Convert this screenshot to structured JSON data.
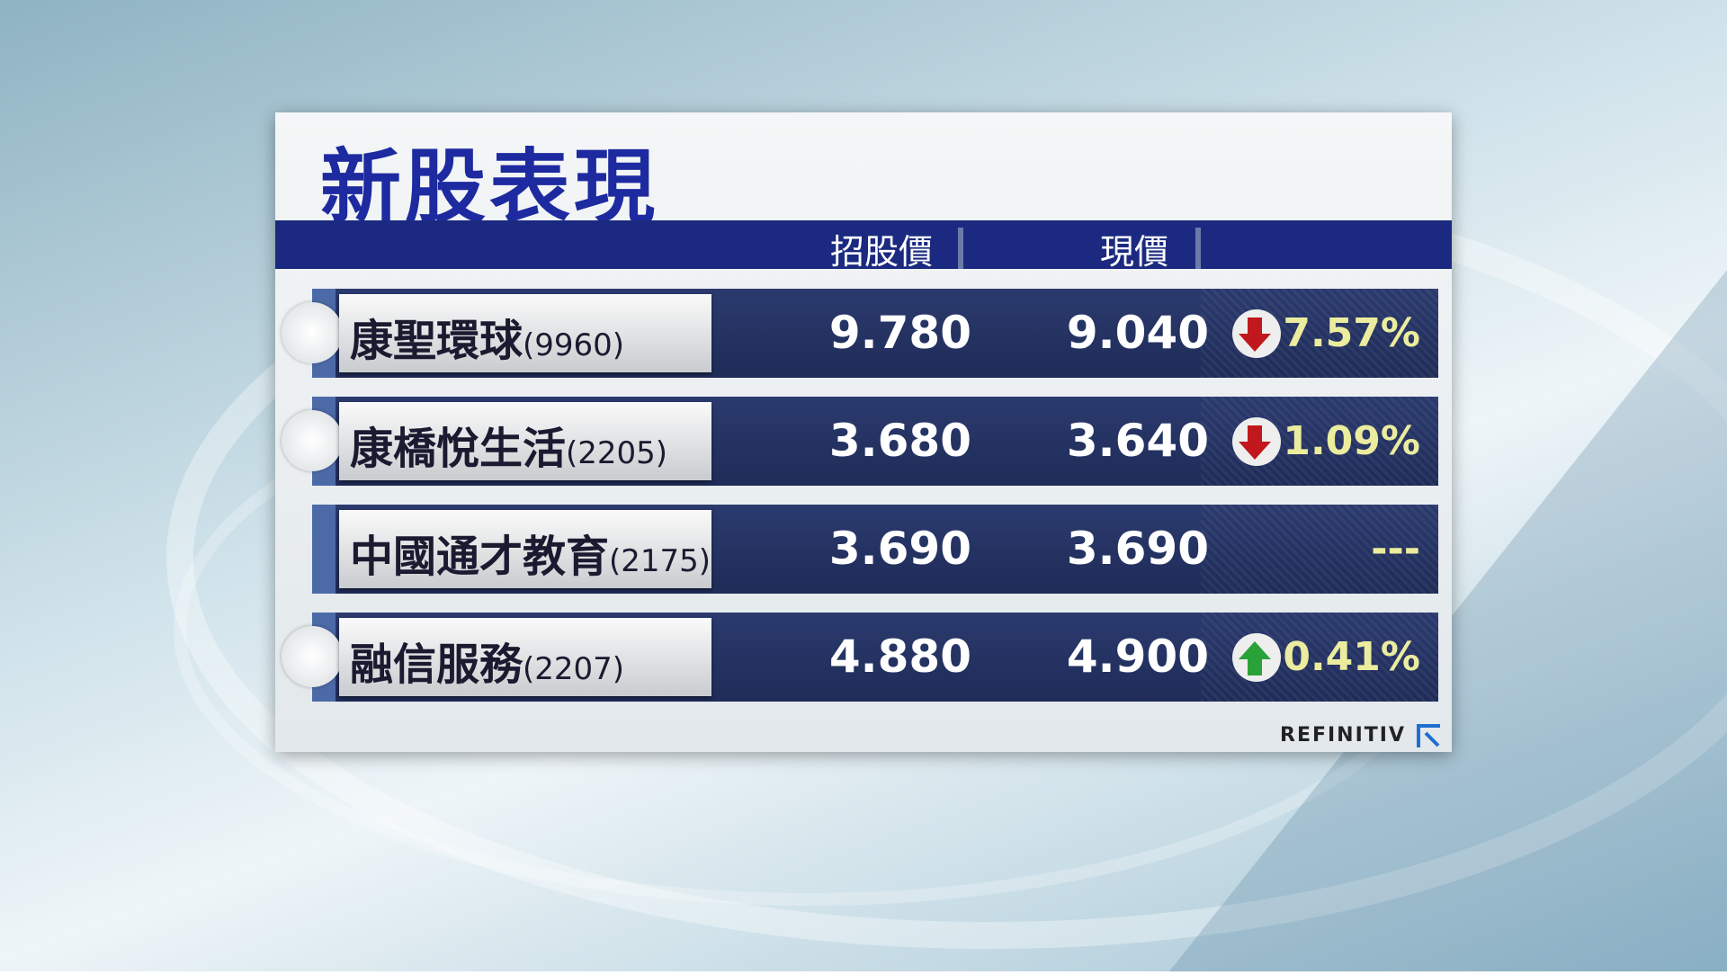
{
  "title": "新股表現",
  "table": {
    "header": [
      "招股價",
      "現價"
    ],
    "rows": [
      [
        "康聖環球",
        "(9960)",
        "9.780",
        "9.040",
        "7.57%"
      ],
      [
        "康橋悅生活",
        "(2205)",
        "3.680",
        "3.640",
        "1.09%"
      ],
      [
        "中國通才教育",
        "(2175)",
        "3.690",
        "3.690",
        "---"
      ],
      [
        "融信服務",
        "(2207)",
        "4.880",
        "4.900",
        "0.41%"
      ]
    ]
  },
  "footer": "REFINITIV"
}
